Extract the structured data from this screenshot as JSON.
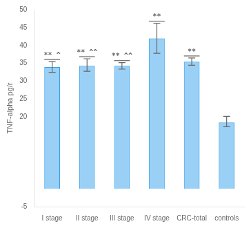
{
  "chart_data": {
    "type": "bar",
    "ylabel": "TNF-alpha pg/r",
    "categories": [
      "I stage",
      "II stage",
      "III stage",
      "IV stage",
      "CRC-total",
      "controls"
    ],
    "values": [
      34.0,
      34.3,
      34.3,
      42.0,
      35.5,
      18.5
    ],
    "errors_up": [
      1.5,
      2.0,
      0.9,
      4.2,
      1.0,
      1.7
    ],
    "errors_down": [
      1.5,
      1.5,
      0.9,
      4.2,
      1.0,
      1.2
    ],
    "annotations": [
      {
        "category": "I stage",
        "label": "** ^"
      },
      {
        "category": "II stage",
        "label": "** ^^"
      },
      {
        "category": "III stage",
        "label": "** ^^"
      },
      {
        "category": "IV stage",
        "label": "**"
      },
      {
        "category": "CRC-total",
        "label": "**"
      }
    ],
    "ylim": [
      -5,
      50
    ],
    "yticks": [
      -5,
      20,
      25,
      30,
      35,
      40,
      45,
      50
    ],
    "grid": false
  }
}
